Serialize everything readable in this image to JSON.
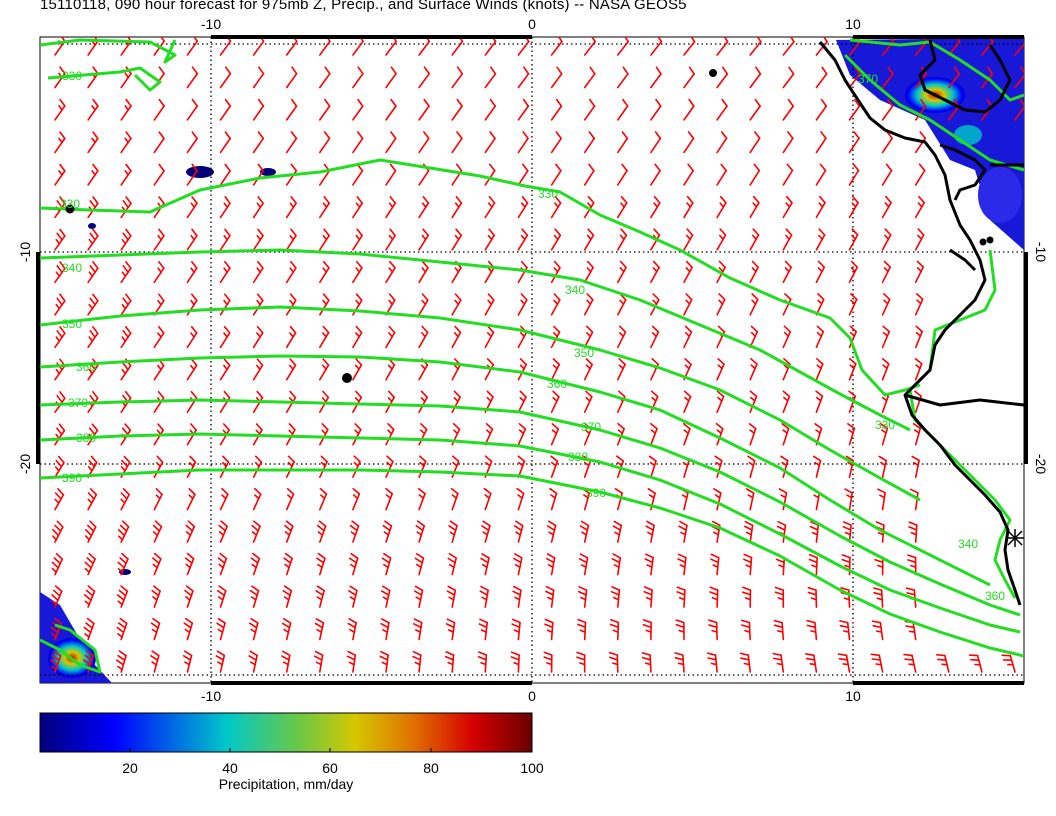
{
  "title": "15110118, 090 hour forecast for 975mb Z, Precip., and Surface Winds (knots) -- NASA GEOS5",
  "map": {
    "lon_ticks": [
      "-10",
      "0",
      "10"
    ],
    "lat_ticks": [
      "-10",
      "-20"
    ],
    "grid": "dotted",
    "colors": {
      "contour": "#22dd22",
      "barb": "#ff0000",
      "coast": "#000000"
    }
  },
  "contour_labels": [
    "330",
    "340",
    "350",
    "360",
    "370",
    "380",
    "390",
    "340",
    "350",
    "360",
    "370",
    "380",
    "390",
    "330",
    "340",
    "330",
    "360",
    "370",
    "330"
  ],
  "colorbar": {
    "label": "Precipitation, mm/day",
    "ticks": [
      "20",
      "40",
      "60",
      "80",
      "100"
    ],
    "colors": [
      "#00007a",
      "#0000ff",
      "#00c8c8",
      "#66c84a",
      "#d4c800",
      "#e07000",
      "#d40000",
      "#6a0000"
    ]
  },
  "wind_field": {
    "units": "knots",
    "barb_count_x": 30,
    "barb_count_y": 20
  }
}
